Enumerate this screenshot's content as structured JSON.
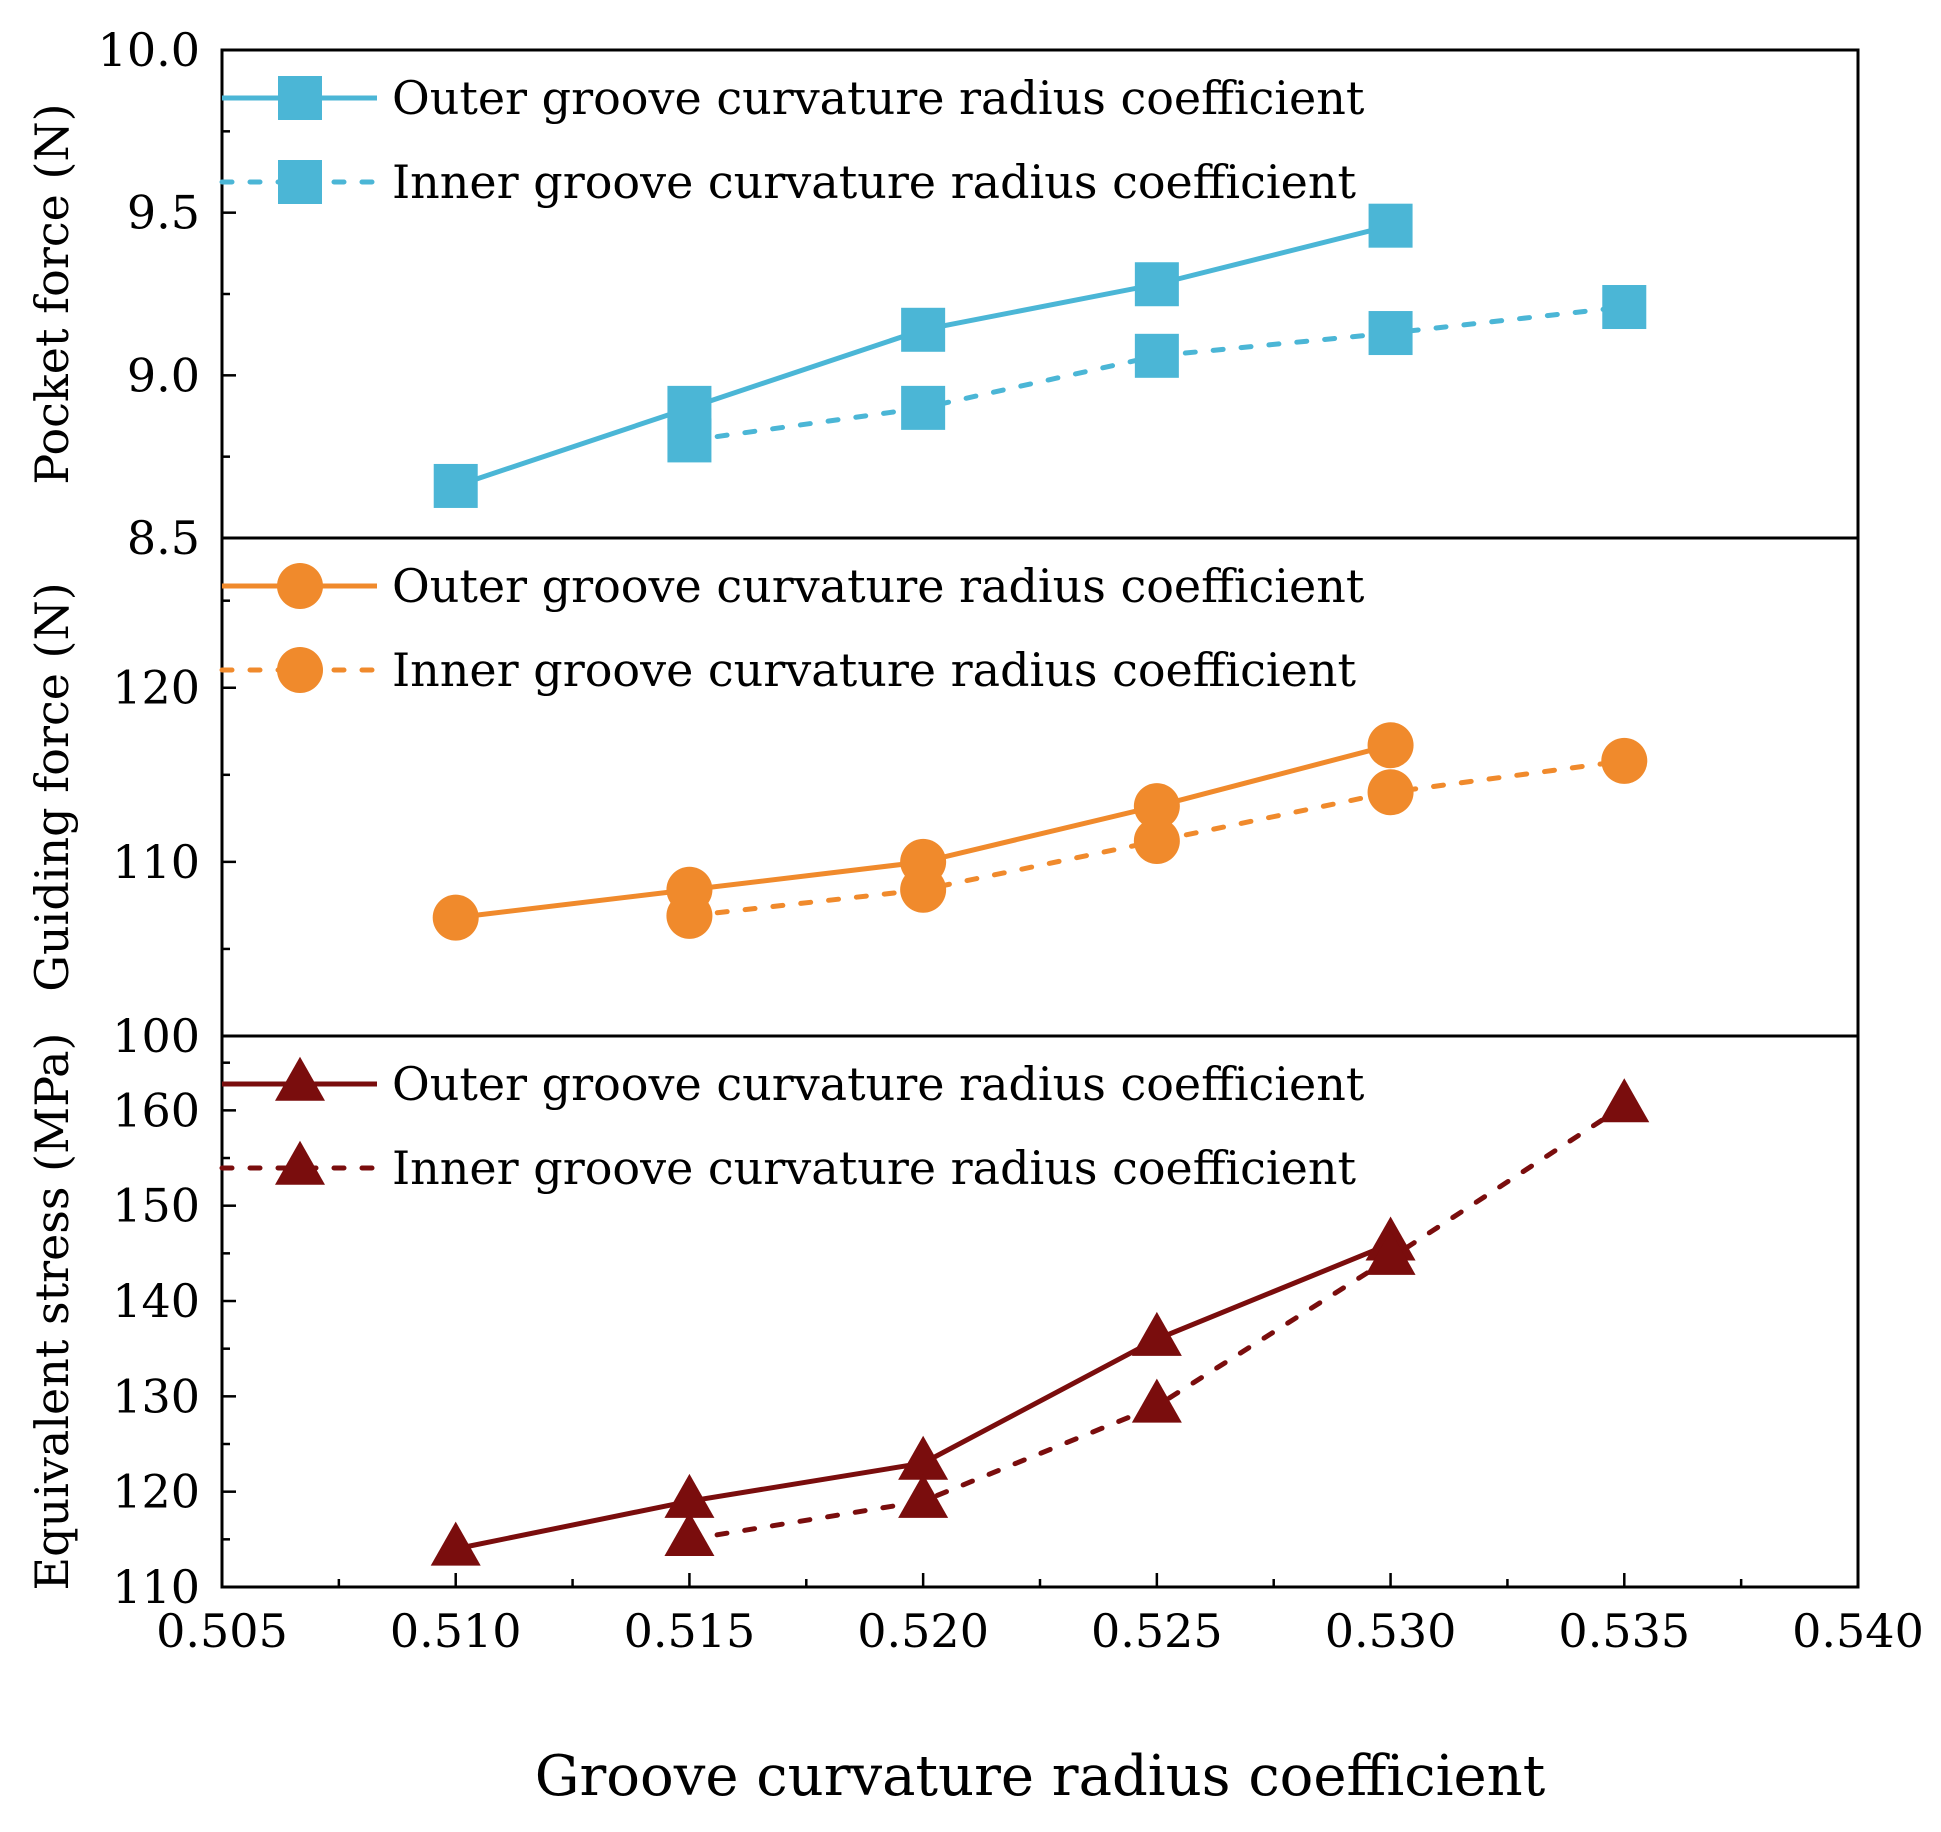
{
  "chart_data": {
    "type": "line",
    "xlabel": "Groove curvature radius coefficient",
    "xlim": [
      0.505,
      0.54
    ],
    "xticks": [
      0.505,
      0.51,
      0.515,
      0.52,
      0.525,
      0.53,
      0.535,
      0.54
    ],
    "xtick_labels": [
      "0.505",
      "0.510",
      "0.515",
      "0.520",
      "0.525",
      "0.530",
      "0.535",
      "0.540"
    ],
    "panels": [
      {
        "ylabel": "Pocket force (N)",
        "ylim": [
          8.5,
          10.0
        ],
        "yticks": [
          8.5,
          9.0,
          9.5,
          10.0
        ],
        "ytick_labels": [
          "8.5",
          "9.0",
          "9.5",
          "10.0"
        ],
        "color": "#4bb6d6",
        "marker": "square",
        "legend_position": "top-left",
        "series": [
          {
            "name": "Outer groove curvature radius coefficient",
            "line": "solid",
            "x": [
              0.51,
              0.515,
              0.52,
              0.525,
              0.53
            ],
            "y": [
              8.66,
              8.9,
              9.14,
              9.28,
              9.46
            ]
          },
          {
            "name": "Inner groove curvature radius coefficient",
            "line": "dotted",
            "x": [
              0.515,
              0.52,
              0.525,
              0.53,
              0.535
            ],
            "y": [
              8.8,
              8.9,
              9.06,
              9.13,
              9.21
            ]
          }
        ]
      },
      {
        "ylabel": "Guiding force (N)",
        "ylim": [
          100,
          128.6
        ],
        "yticks": [
          100,
          110,
          120
        ],
        "ytick_labels": [
          "100",
          "110",
          "120"
        ],
        "color": "#f08a2c",
        "marker": "circle",
        "legend_position": "top-left",
        "series": [
          {
            "name": "Outer groove curvature radius coefficient",
            "line": "solid",
            "x": [
              0.51,
              0.515,
              0.52,
              0.525,
              0.53
            ],
            "y": [
              106.8,
              108.4,
              110.0,
              113.2,
              116.7
            ]
          },
          {
            "name": "Inner groove curvature radius coefficient",
            "line": "dotted",
            "x": [
              0.515,
              0.52,
              0.525,
              0.53,
              0.535
            ],
            "y": [
              106.9,
              108.4,
              111.2,
              114.0,
              115.8
            ]
          }
        ]
      },
      {
        "ylabel": "Equivalent stress (MPa)",
        "ylim": [
          110,
          167.8
        ],
        "yticks": [
          110,
          120,
          130,
          140,
          150,
          160
        ],
        "ytick_labels": [
          "110",
          "120",
          "130",
          "140",
          "150",
          "160"
        ],
        "color": "#7a0d0d",
        "marker": "triangle",
        "legend_position": "top-left",
        "series": [
          {
            "name": "Outer groove curvature radius coefficient",
            "line": "solid",
            "x": [
              0.51,
              0.515,
              0.52,
              0.525,
              0.53
            ],
            "y": [
              114,
              119,
              123,
              136,
              146
            ]
          },
          {
            "name": "Inner groove curvature radius coefficient",
            "line": "dotted",
            "x": [
              0.515,
              0.52,
              0.525,
              0.53,
              0.535
            ],
            "y": [
              115,
              119,
              129,
              144.5,
              160.5
            ]
          }
        ]
      }
    ]
  }
}
